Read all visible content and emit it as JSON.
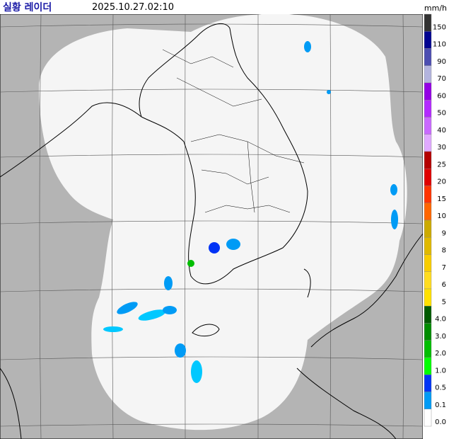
{
  "header": {
    "title": "실황 레이더",
    "timestamp": "2025.10.27.02:10",
    "unit": "mm/h"
  },
  "legend": [
    {
      "label": "150",
      "color": "#333333"
    },
    {
      "label": "110",
      "color": "#000390"
    },
    {
      "label": "90",
      "color": "#4c4eb1"
    },
    {
      "label": "70",
      "color": "#b3b4de"
    },
    {
      "label": "60",
      "color": "#9300e4"
    },
    {
      "label": "50",
      "color": "#b329ff"
    },
    {
      "label": "40",
      "color": "#c969ff"
    },
    {
      "label": "30",
      "color": "#e0a9ff"
    },
    {
      "label": "25",
      "color": "#b40000"
    },
    {
      "label": "20",
      "color": "#e00000"
    },
    {
      "label": "15",
      "color": "#ff3300"
    },
    {
      "label": "10",
      "color": "#ff6600"
    },
    {
      "label": "9",
      "color": "#ccaa00"
    },
    {
      "label": "8",
      "color": "#e0b900"
    },
    {
      "label": "7",
      "color": "#f9cd00"
    },
    {
      "label": "6",
      "color": "#ffdc1f"
    },
    {
      "label": "5",
      "color": "#ffe100"
    },
    {
      "label": "4.0",
      "color": "#005a00"
    },
    {
      "label": "3.0",
      "color": "#008c00"
    },
    {
      "label": "2.0",
      "color": "#00be00"
    },
    {
      "label": "1.0",
      "color": "#00ff00"
    },
    {
      "label": "0.5",
      "color": "#0033f5"
    },
    {
      "label": "0.1",
      "color": "#009bf5"
    },
    {
      "label": "0.0",
      "color": "#ffffff"
    }
  ]
}
